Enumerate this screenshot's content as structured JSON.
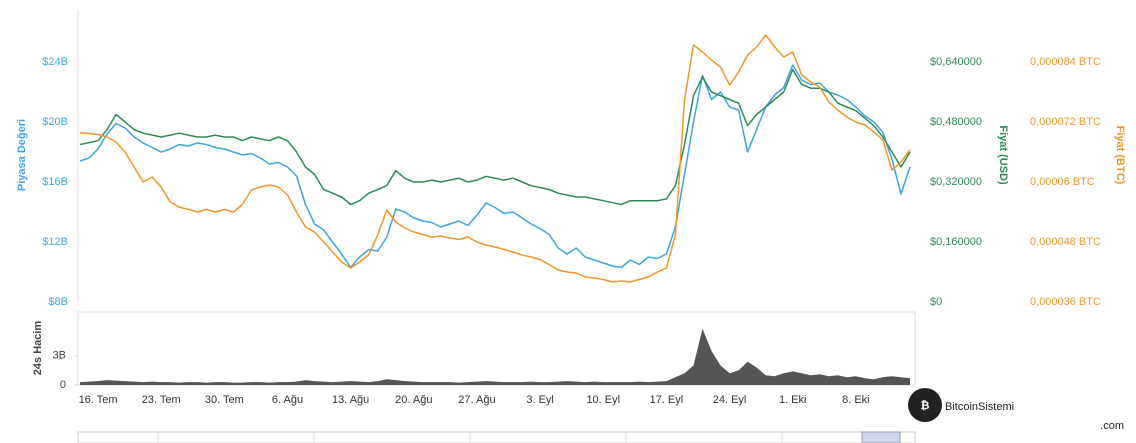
{
  "chart_data": {
    "type": "line",
    "categories": [
      null,
      null,
      "16. Tem",
      null,
      null,
      null,
      null,
      null,
      null,
      "23. Tem",
      null,
      null,
      null,
      null,
      null,
      null,
      "30. Tem",
      null,
      null,
      null,
      null,
      null,
      null,
      "6. Ağu",
      null,
      null,
      null,
      null,
      null,
      null,
      "13. Ağu",
      null,
      null,
      null,
      null,
      null,
      null,
      "20. Ağu",
      null,
      null,
      null,
      null,
      null,
      null,
      "27. Ağu",
      null,
      null,
      null,
      null,
      null,
      null,
      "3. Eyl",
      null,
      null,
      null,
      null,
      null,
      null,
      "10. Eyl",
      null,
      null,
      null,
      null,
      null,
      null,
      "17. Eyl",
      null,
      null,
      null,
      null,
      null,
      null,
      "24. Eyl",
      null,
      null,
      null,
      null,
      null,
      null,
      "1. Eki",
      null,
      null,
      null,
      null,
      null,
      null,
      "8. Eki",
      null,
      null,
      null,
      null,
      null,
      null
    ],
    "ylabel": "Piyasa Değeri",
    "y2label": "Fiyat (USD)",
    "y3label": "Fiyat (BTC)",
    "vlabel": "24s Hacim",
    "ylim": [
      8,
      27.33
    ],
    "yticks": [
      {
        "value": 8,
        "label": "$8B"
      },
      {
        "value": 12,
        "label": "$12B"
      },
      {
        "value": 16,
        "label": "$16B"
      },
      {
        "value": 20,
        "label": "$20B"
      },
      {
        "value": 24,
        "label": "$24B"
      }
    ],
    "y2lim": [
      0,
      0.7733
    ],
    "y2ticks": [
      {
        "value": 0,
        "label": "$0"
      },
      {
        "value": 0.16,
        "label": "$0,160000"
      },
      {
        "value": 0.32,
        "label": "$0,320000"
      },
      {
        "value": 0.48,
        "label": "$0,480000"
      },
      {
        "value": 0.64,
        "label": "$0,640000"
      }
    ],
    "y3lim": [
      3.6e-05,
      9.4e-05
    ],
    "y3ticks": [
      {
        "value": 3.6e-05,
        "label": "0,000036 BTC"
      },
      {
        "value": 4.8e-05,
        "label": "0,000048 BTC"
      },
      {
        "value": 6e-05,
        "label": "0,00006 BTC"
      },
      {
        "value": 7.2e-05,
        "label": "0,000072 BTC"
      },
      {
        "value": 8.4e-05,
        "label": "0,000084 BTC"
      }
    ],
    "vlim": [
      0,
      7.3
    ],
    "vticks": [
      0,
      {
        "value": 3,
        "label": "3B"
      }
    ],
    "series": [
      {
        "color": "#3fa6dc",
        "axis": "y",
        "values": [
          17.4,
          17.6,
          18.2,
          19.2,
          19.9,
          19.6,
          19.0,
          18.6,
          18.3,
          18.0,
          18.2,
          18.5,
          18.4,
          18.6,
          18.5,
          18.3,
          18.2,
          18.0,
          17.8,
          17.9,
          17.6,
          17.2,
          17.3,
          17.0,
          16.4,
          14.5,
          13.2,
          12.8,
          12.0,
          11.2,
          10.3,
          11.0,
          11.5,
          11.4,
          12.3,
          14.2,
          14.0,
          13.6,
          13.4,
          13.3,
          13.0,
          13.2,
          13.4,
          13.1,
          13.8,
          14.6,
          14.3,
          13.9,
          14.0,
          13.6,
          13.2,
          12.9,
          12.5,
          11.6,
          11.2,
          11.6,
          11.0,
          10.8,
          10.6,
          10.4,
          10.3,
          10.8,
          10.5,
          11.0,
          10.9,
          11.2,
          13.0,
          16.5,
          20.0,
          23.1,
          21.5,
          22.0,
          21.0,
          20.8,
          18.0,
          19.5,
          21.0,
          21.8,
          22.3,
          23.8,
          22.8,
          22.5,
          22.6,
          22.0,
          21.8,
          21.5,
          21.0,
          20.4,
          20.0,
          19.3,
          17.5,
          15.2,
          17.0
        ]
      },
      {
        "color": "#2e8b57",
        "axis": "y2",
        "values": [
          0.42,
          0.425,
          0.43,
          0.46,
          0.5,
          0.48,
          0.46,
          0.45,
          0.445,
          0.44,
          0.445,
          0.45,
          0.445,
          0.44,
          0.44,
          0.445,
          0.44,
          0.44,
          0.43,
          0.44,
          0.435,
          0.43,
          0.44,
          0.43,
          0.4,
          0.36,
          0.34,
          0.3,
          0.29,
          0.28,
          0.26,
          0.27,
          0.29,
          0.3,
          0.31,
          0.35,
          0.33,
          0.32,
          0.32,
          0.325,
          0.32,
          0.325,
          0.33,
          0.32,
          0.325,
          0.335,
          0.33,
          0.325,
          0.33,
          0.32,
          0.31,
          0.305,
          0.3,
          0.29,
          0.285,
          0.28,
          0.28,
          0.275,
          0.27,
          0.265,
          0.26,
          0.27,
          0.27,
          0.27,
          0.27,
          0.275,
          0.31,
          0.42,
          0.55,
          0.6,
          0.56,
          0.55,
          0.54,
          0.53,
          0.47,
          0.5,
          0.52,
          0.54,
          0.56,
          0.62,
          0.58,
          0.57,
          0.57,
          0.56,
          0.53,
          0.52,
          0.51,
          0.49,
          0.47,
          0.44,
          0.4,
          0.36,
          0.4
        ]
      },
      {
        "color": "#f0952a",
        "axis": "y3",
        "values": [
          6.98e-05,
          6.97e-05,
          6.95e-05,
          6.9e-05,
          6.8e-05,
          6.6e-05,
          6.3e-05,
          6e-05,
          6.1e-05,
          5.9e-05,
          5.6e-05,
          5.5e-05,
          5.45e-05,
          5.4e-05,
          5.45e-05,
          5.4e-05,
          5.45e-05,
          5.4e-05,
          5.55e-05,
          5.84e-05,
          5.9e-05,
          5.94e-05,
          5.9e-05,
          5.74e-05,
          5.4e-05,
          5.1e-05,
          5e-05,
          4.8e-05,
          4.6e-05,
          4.4e-05,
          4.28e-05,
          4.4e-05,
          4.54e-05,
          4.94e-05,
          5.44e-05,
          5.2e-05,
          5.08e-05,
          5e-05,
          4.95e-05,
          4.9e-05,
          4.92e-05,
          4.88e-05,
          4.85e-05,
          4.9e-05,
          4.8e-05,
          4.74e-05,
          4.7e-05,
          4.65e-05,
          4.6e-05,
          4.54e-05,
          4.5e-05,
          4.45e-05,
          4.35e-05,
          4.24e-05,
          4.2e-05,
          4.18e-05,
          4.1e-05,
          4.08e-05,
          4.05e-05,
          4e-05,
          4.02e-05,
          4e-05,
          4.05e-05,
          4.1e-05,
          4.2e-05,
          4.28e-05,
          4.94e-05,
          7.64e-05,
          8.74e-05,
          8.6e-05,
          8.44e-05,
          8.3e-05,
          7.94e-05,
          8.2e-05,
          8.54e-05,
          8.7e-05,
          8.94e-05,
          8.7e-05,
          8.5e-05,
          8.6e-05,
          8.14e-05,
          8e-05,
          7.9e-05,
          7.6e-05,
          7.44e-05,
          7.3e-05,
          7.2e-05,
          7.14e-05,
          7e-05,
          6.84e-05,
          6.24e-05,
          6.4e-05,
          6.64e-05
        ]
      },
      {
        "color": "#555555",
        "axis": "volume",
        "type": "area",
        "values": [
          0.3,
          0.35,
          0.4,
          0.5,
          0.45,
          0.4,
          0.35,
          0.3,
          0.35,
          0.3,
          0.3,
          0.25,
          0.3,
          0.3,
          0.25,
          0.3,
          0.3,
          0.25,
          0.25,
          0.3,
          0.3,
          0.25,
          0.3,
          0.3,
          0.35,
          0.5,
          0.4,
          0.35,
          0.3,
          0.35,
          0.4,
          0.35,
          0.3,
          0.4,
          0.6,
          0.5,
          0.4,
          0.35,
          0.3,
          0.3,
          0.3,
          0.3,
          0.25,
          0.3,
          0.35,
          0.4,
          0.35,
          0.3,
          0.3,
          0.3,
          0.35,
          0.3,
          0.3,
          0.35,
          0.4,
          0.35,
          0.3,
          0.35,
          0.3,
          0.3,
          0.3,
          0.3,
          0.35,
          0.3,
          0.35,
          0.4,
          0.8,
          1.2,
          2.0,
          5.8,
          3.5,
          2.0,
          1.2,
          1.5,
          2.4,
          1.8,
          1.0,
          0.9,
          1.2,
          1.4,
          1.2,
          1.0,
          1.1,
          0.9,
          1.0,
          0.8,
          0.9,
          0.7,
          0.6,
          0.8,
          0.9,
          0.8,
          0.7
        ]
      }
    ]
  },
  "watermark": {
    "name": "BitcoinSistemi",
    "domain": ".com"
  }
}
